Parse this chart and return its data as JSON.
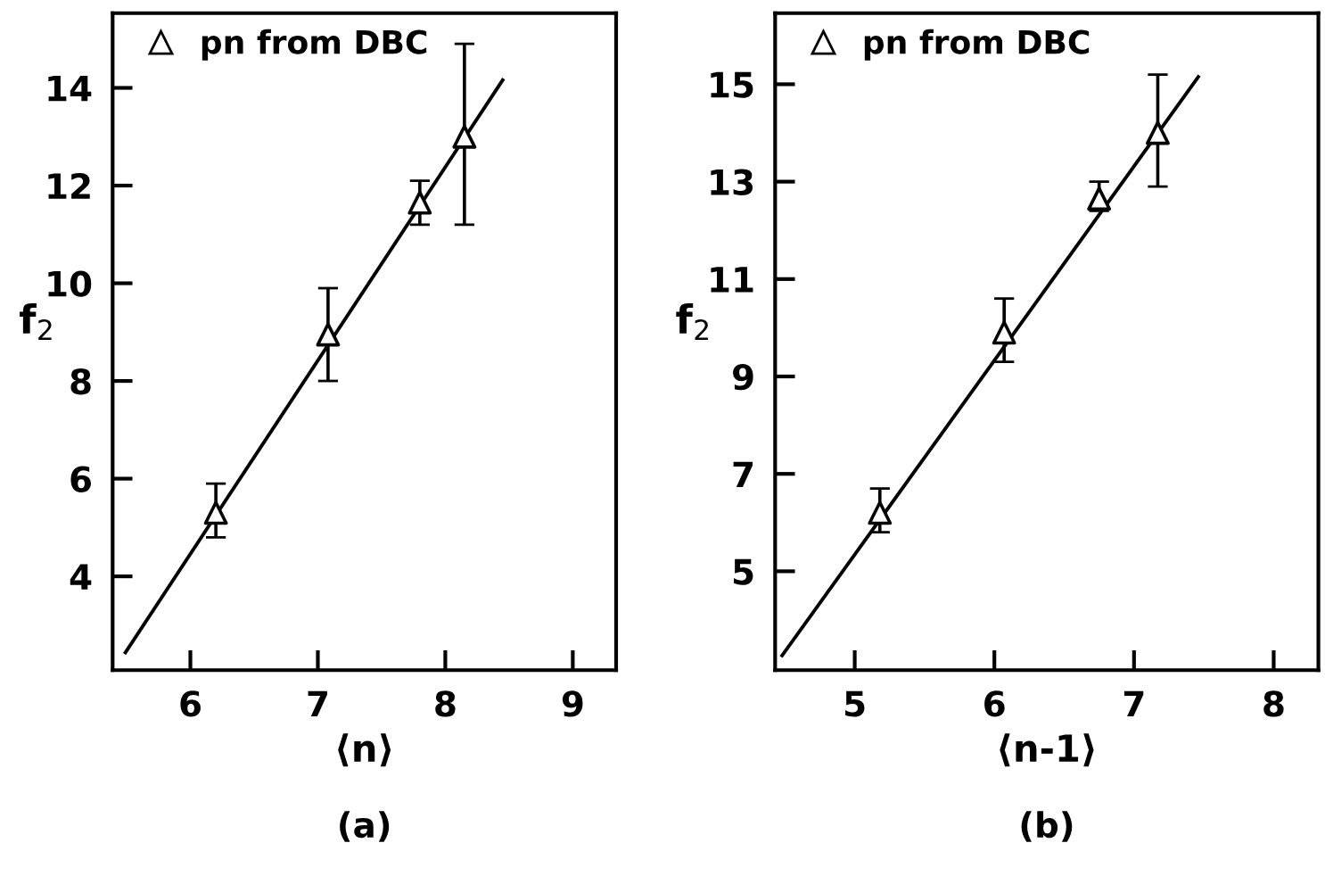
{
  "chart_data": [
    {
      "type": "scatter",
      "xlabel": "⟨n⟩",
      "ylabel": "f$_{2}$",
      "annotations": [
        "(a)"
      ],
      "xlim": [
        5.39,
        9.34
      ],
      "ylim": [
        2.08,
        15.53
      ],
      "xticks": [
        6,
        7,
        8,
        9
      ],
      "yticks": [
        4,
        6,
        8,
        10,
        12,
        14
      ],
      "grid": false,
      "legend": "top left",
      "series": [
        {
          "name": "pn from DBC",
          "type": "scatter",
          "marker": "triangle",
          "color": "#000000",
          "x": [
            6.2,
            7.08,
            7.8,
            8.15
          ],
          "values": [
            5.3,
            8.95,
            11.65,
            13.0
          ],
          "errors": [
            [
              4.8,
              5.9
            ],
            [
              8.0,
              9.9
            ],
            [
              11.2,
              12.1
            ],
            [
              11.2,
              14.9
            ]
          ]
        },
        {
          "type": "line",
          "marker": "none",
          "color": "#000000",
          "x": [
            5.49,
            8.45
          ],
          "values": [
            2.44,
            14.16
          ]
        }
      ]
    },
    {
      "type": "scatter",
      "xlabel": "⟨n-1⟩",
      "ylabel": "f$_{2}$",
      "annotations": [
        "(b)"
      ],
      "xlim": [
        4.43,
        8.32
      ],
      "ylim": [
        2.97,
        16.46
      ],
      "xticks": [
        5,
        6,
        7,
        8
      ],
      "yticks": [
        5,
        7,
        9,
        11,
        13,
        15
      ],
      "grid": false,
      "legend": "top left",
      "series": [
        {
          "name": "pn from DBC",
          "type": "scatter",
          "marker": "triangle",
          "color": "#000000",
          "x": [
            5.18,
            6.07,
            6.75,
            7.17
          ],
          "values": [
            6.2,
            9.9,
            12.65,
            14.0
          ],
          "errors": [
            [
              5.8,
              6.7
            ],
            [
              9.3,
              10.6
            ],
            [
              12.4,
              13.0
            ],
            [
              12.9,
              15.2
            ]
          ]
        },
        {
          "type": "line",
          "marker": "none",
          "color": "#000000",
          "x": [
            4.48,
            7.46
          ],
          "values": [
            3.27,
            15.15
          ]
        }
      ]
    }
  ]
}
